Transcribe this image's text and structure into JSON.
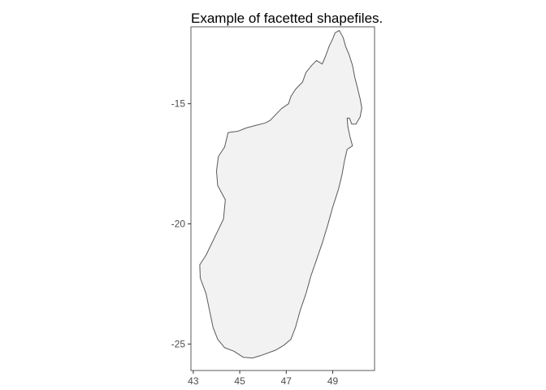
{
  "chart_data": {
    "type": "map",
    "title": "Example of facetted shapefiles.",
    "xlabel": "",
    "ylabel": "",
    "xlim": [
      42.9,
      50.8
    ],
    "ylim": [
      -26.1,
      -11.8
    ],
    "x_ticks": [
      43,
      45,
      47,
      49
    ],
    "x_tick_labels": [
      "43",
      "45",
      "47",
      "49"
    ],
    "y_ticks": [
      -15,
      -20,
      -25
    ],
    "y_tick_labels": [
      "-15",
      "-20",
      "-25"
    ],
    "grid": false,
    "legend": "none",
    "fill_color": "#f2f2f2",
    "stroke_color": "#595959",
    "shape": {
      "name": "Madagascar",
      "outline": [
        [
          49.28,
          -11.95
        ],
        [
          49.45,
          -12.25
        ],
        [
          49.55,
          -12.6
        ],
        [
          49.7,
          -12.95
        ],
        [
          49.85,
          -13.4
        ],
        [
          49.95,
          -13.9
        ],
        [
          50.08,
          -14.4
        ],
        [
          50.18,
          -14.8
        ],
        [
          50.25,
          -15.18
        ],
        [
          50.18,
          -15.55
        ],
        [
          50.0,
          -15.85
        ],
        [
          49.82,
          -15.85
        ],
        [
          49.72,
          -15.6
        ],
        [
          49.62,
          -15.6
        ],
        [
          49.65,
          -15.95
        ],
        [
          49.75,
          -16.4
        ],
        [
          49.85,
          -16.75
        ],
        [
          49.62,
          -16.9
        ],
        [
          49.5,
          -17.4
        ],
        [
          49.4,
          -17.95
        ],
        [
          49.25,
          -18.55
        ],
        [
          49.0,
          -19.3
        ],
        [
          48.8,
          -20.0
        ],
        [
          48.55,
          -20.8
        ],
        [
          48.3,
          -21.5
        ],
        [
          48.05,
          -22.2
        ],
        [
          47.85,
          -22.9
        ],
        [
          47.6,
          -23.6
        ],
        [
          47.4,
          -24.3
        ],
        [
          47.2,
          -24.8
        ],
        [
          46.9,
          -25.05
        ],
        [
          46.55,
          -25.25
        ],
        [
          45.9,
          -25.48
        ],
        [
          45.55,
          -25.58
        ],
        [
          45.15,
          -25.55
        ],
        [
          44.75,
          -25.3
        ],
        [
          44.35,
          -25.15
        ],
        [
          44.05,
          -24.8
        ],
        [
          43.85,
          -24.3
        ],
        [
          43.7,
          -23.6
        ],
        [
          43.55,
          -22.9
        ],
        [
          43.3,
          -22.25
        ],
        [
          43.28,
          -21.7
        ],
        [
          43.55,
          -21.3
        ],
        [
          43.8,
          -20.8
        ],
        [
          44.05,
          -20.3
        ],
        [
          44.3,
          -19.8
        ],
        [
          44.38,
          -19.0
        ],
        [
          44.05,
          -18.4
        ],
        [
          44.0,
          -17.8
        ],
        [
          44.08,
          -17.2
        ],
        [
          44.35,
          -16.8
        ],
        [
          44.5,
          -16.2
        ],
        [
          44.9,
          -16.15
        ],
        [
          45.3,
          -16.0
        ],
        [
          45.7,
          -15.9
        ],
        [
          46.1,
          -15.8
        ],
        [
          46.3,
          -15.7
        ],
        [
          46.45,
          -15.55
        ],
        [
          46.8,
          -15.2
        ],
        [
          47.1,
          -15.0
        ],
        [
          47.2,
          -14.7
        ],
        [
          47.4,
          -14.4
        ],
        [
          47.7,
          -14.1
        ],
        [
          47.85,
          -13.7
        ],
        [
          48.1,
          -13.4
        ],
        [
          48.3,
          -13.2
        ],
        [
          48.55,
          -13.35
        ],
        [
          48.7,
          -13.0
        ],
        [
          48.85,
          -12.6
        ],
        [
          49.0,
          -12.3
        ],
        [
          49.1,
          -12.05
        ],
        [
          49.28,
          -11.95
        ]
      ]
    }
  }
}
